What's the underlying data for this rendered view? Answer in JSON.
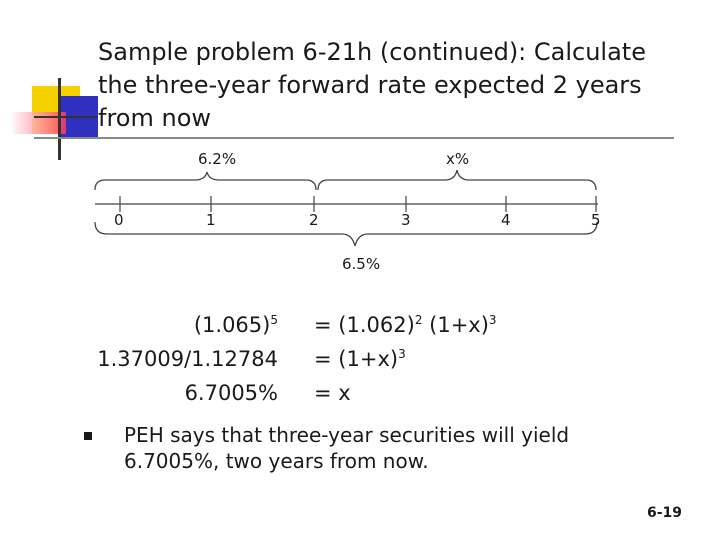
{
  "slide": {
    "title_lines": [
      "Sample problem 6-21h (continued): Calculate",
      "the three-year forward rate expected 2 years",
      "from now"
    ],
    "page_number": "6-19"
  },
  "timeline": {
    "top_label_left": "6.2%",
    "top_label_right": "x%",
    "ticks": [
      "0",
      "1",
      "2",
      "3",
      "4",
      "5"
    ],
    "bottom_label": "6.5%"
  },
  "equations": {
    "row1": {
      "left_base": "(1.065)",
      "left_exp": "5",
      "op": "=",
      "right_base1": "(1.062)",
      "right_exp1": "2",
      "right_base2": "(1+x)",
      "right_exp2": "3"
    },
    "row2": {
      "left": "1.37009/1.12784",
      "op": "=",
      "right_base": "(1+x)",
      "right_exp": "3"
    },
    "row3": {
      "left": "6.7005%",
      "op": "=",
      "right": "x"
    }
  },
  "bullet": {
    "text": "PEH says that three-year securities will yield 6.7005%, two years from now."
  },
  "colors": {
    "logo_yellow": "#f5d100",
    "logo_red": "#ff3a5a",
    "logo_blue": "#3030c0",
    "rule_gray": "#8a8a8a"
  }
}
